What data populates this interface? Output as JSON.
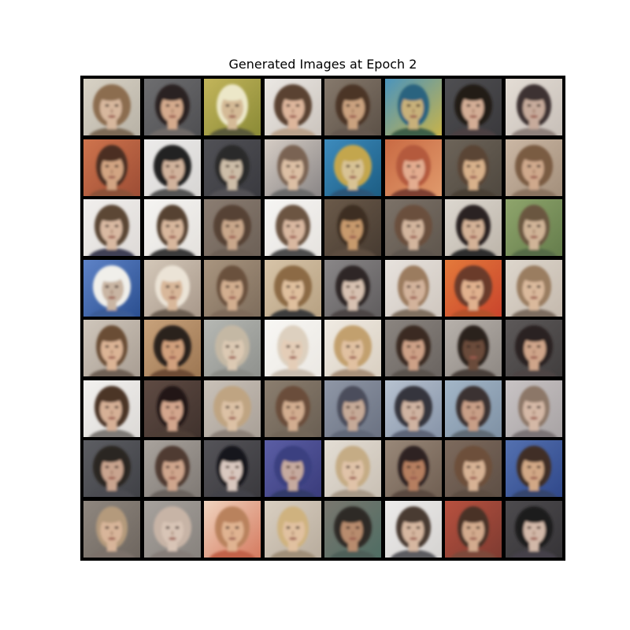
{
  "figure": {
    "title": "Generated Images at Epoch 2"
  },
  "grid": {
    "rows": 8,
    "cols": 8,
    "tile_count": 64,
    "background_color": "#000000",
    "frame_color": "#000000"
  },
  "faces": [
    {
      "bg": "#d8d2c5",
      "bg2": "#b8b2a6",
      "skin": "#d7b79d",
      "hair": "#8c6d4f",
      "shirt": "#7b6a57"
    },
    {
      "bg": "#6e6e70",
      "bg2": "#4f4f52",
      "skin": "#d4aa8d",
      "hair": "#2a2320",
      "shirt": "#6f6a67"
    },
    {
      "bg": "#c3b55b",
      "bg2": "#8a8a36",
      "skin": "#d4ba96",
      "hair": "#ece7c8",
      "shirt": "#5a5a3a"
    },
    {
      "bg": "#ebe8e4",
      "bg2": "#cbc4bd",
      "skin": "#ddb69b",
      "hair": "#5a4233",
      "shirt": "#b9a28c"
    },
    {
      "bg": "#86796c",
      "bg2": "#5c5147",
      "skin": "#caa27f",
      "hair": "#4b3527",
      "shirt": "#65594f"
    },
    {
      "bg": "#4a94bd",
      "bg2": "#c7b34b",
      "skin": "#c8b07a",
      "hair": "#2a637f",
      "shirt": "#3c5e4a"
    },
    {
      "bg": "#4f4f52",
      "bg2": "#3a393c",
      "skin": "#d3ad95",
      "hair": "#201a18",
      "shirt": "#4b4142"
    },
    {
      "bg": "#e4ddd5",
      "bg2": "#c7bfb8",
      "skin": "#c7ab9b",
      "hair": "#3c3232",
      "shirt": "#8e817c"
    },
    {
      "bg": "#cf744d",
      "bg2": "#9d4d35",
      "skin": "#d2a482",
      "hair": "#4b2f22",
      "shirt": "#8c5138"
    },
    {
      "bg": "#ecebea",
      "bg2": "#d7d5d3",
      "skin": "#d1b39c",
      "hair": "#202020",
      "shirt": "#545454"
    },
    {
      "bg": "#515156",
      "bg2": "#3a3a3f",
      "skin": "#cdbda8",
      "hair": "#2b2a2a",
      "shirt": "#535154"
    },
    {
      "bg": "#d5ccc4",
      "bg2": "#8a8686",
      "skin": "#dcbfa4",
      "hair": "#7a6452",
      "shirt": "#6b6b6b"
    },
    {
      "bg": "#3d8bbd",
      "bg2": "#1c5d83",
      "skin": "#d8c294",
      "hair": "#c3a64e",
      "shirt": "#2c5577"
    },
    {
      "bg": "#c96a43",
      "bg2": "#e09a6c",
      "skin": "#e3ac8f",
      "hair": "#b45a3e",
      "shirt": "#7d3f31"
    },
    {
      "bg": "#6d6459",
      "bg2": "#4f483f",
      "skin": "#d8b18b",
      "hair": "#5a4535",
      "shirt": "#4a4035"
    },
    {
      "bg": "#cbb7a4",
      "bg2": "#a38f7b",
      "skin": "#cfa98c",
      "hair": "#7a5c43",
      "shirt": "#8a7361"
    },
    {
      "bg": "#f1efed",
      "bg2": "#dedad7",
      "skin": "#d9b9a2",
      "hair": "#5b4636",
      "shirt": "#3f3f55"
    },
    {
      "bg": "#f5f4f2",
      "bg2": "#e4e1dd",
      "skin": "#d8b79d",
      "hair": "#574233",
      "shirt": "#3b3b3b"
    },
    {
      "bg": "#8b7d72",
      "bg2": "#6c6056",
      "skin": "#c9a78b",
      "hair": "#564235",
      "shirt": "#6c5f55"
    },
    {
      "bg": "#f6f5f3",
      "bg2": "#e6e3df",
      "skin": "#d9b8a0",
      "hair": "#6c5443",
      "shirt": "#4e4e4e"
    },
    {
      "bg": "#6b5a4a",
      "bg2": "#473b31",
      "skin": "#c79a6d",
      "hair": "#3c2e23",
      "shirt": "#5d4e40"
    },
    {
      "bg": "#7c7268",
      "bg2": "#5f564d",
      "skin": "#d3b59d",
      "hair": "#6a4f3d",
      "shirt": "#5d554d"
    },
    {
      "bg": "#dcd7cf",
      "bg2": "#bdb5aa",
      "skin": "#d4b297",
      "hair": "#2a2422",
      "shirt": "#2d2d2d"
    },
    {
      "bg": "#8fa56c",
      "bg2": "#657d4c",
      "skin": "#d0b497",
      "hair": "#6b5740",
      "shirt": "#556a47"
    },
    {
      "bg": "#5e83c7",
      "bg2": "#2b4f90",
      "skin": "#c9b5a3",
      "hair": "#f0efea",
      "shirt": "#3b5b96"
    },
    {
      "bg": "#d4c8b9",
      "bg2": "#a8988a",
      "skin": "#d8b79a",
      "hair": "#ebe3d6",
      "shirt": "#6c5f52"
    },
    {
      "bg": "#a9957f",
      "bg2": "#7e6d5c",
      "skin": "#d2ae8f",
      "hair": "#6b513e",
      "shirt": "#7e6b5a"
    },
    {
      "bg": "#d7c4a8",
      "bg2": "#b7a182",
      "skin": "#dfbf9d",
      "hair": "#8c6a44",
      "shirt": "#3d3d3d"
    },
    {
      "bg": "#8a8788",
      "bg2": "#605d5e",
      "skin": "#d7c1b1",
      "hair": "#2f2725",
      "shirt": "#4b4545"
    },
    {
      "bg": "#e7e2dd",
      "bg2": "#cfc7bf",
      "skin": "#d3b39b",
      "hair": "#9b7b5f",
      "shirt": "#7f6f61"
    },
    {
      "bg": "#e47a3b",
      "bg2": "#c9442c",
      "skin": "#e0b18e",
      "hair": "#6b3a2c",
      "shirt": "#b4512c"
    },
    {
      "bg": "#ddd6cc",
      "bg2": "#c4b9ad",
      "skin": "#dab99c",
      "hair": "#9a7d60",
      "shirt": "#7c6d60"
    },
    {
      "bg": "#cfc6bb",
      "bg2": "#a99e93",
      "skin": "#dbb495",
      "hair": "#6a4d36",
      "shirt": "#6e6155"
    },
    {
      "bg": "#c8a27b",
      "bg2": "#9d7753",
      "skin": "#d1a07d",
      "hair": "#2c221d",
      "shirt": "#6d4b36"
    },
    {
      "bg": "#b6b8b3",
      "bg2": "#8f918d",
      "skin": "#dcc9b3",
      "hair": "#c4b8a4",
      "shirt": "#8a8b86"
    },
    {
      "bg": "#f8f7f4",
      "bg2": "#ebe8e3",
      "skin": "#e4cdb7",
      "hair": "#ddd0bf",
      "shirt": "#c8bdb0"
    },
    {
      "bg": "#f0ebe3",
      "bg2": "#d9cfc1",
      "skin": "#e1c1a1",
      "hair": "#c2a06e",
      "shirt": "#a8917a"
    },
    {
      "bg": "#8b8580",
      "bg2": "#6a6460",
      "skin": "#cda187",
      "hair": "#3a2a22",
      "shirt": "#5a524e"
    },
    {
      "bg": "#b7b1ab",
      "bg2": "#8e8883",
      "skin": "#6b4b3b",
      "hair": "#2b201c",
      "shirt": "#4a3f3b"
    },
    {
      "bg": "#5d5959",
      "bg2": "#413e3e",
      "skin": "#cfa58a",
      "hair": "#2a2220",
      "shirt": "#4d4545"
    },
    {
      "bg": "#f2f1ef",
      "bg2": "#dcd9d6",
      "skin": "#d6b096",
      "hair": "#4b3427",
      "shirt": "#7e7a76"
    },
    {
      "bg": "#5f4b43",
      "bg2": "#40322d",
      "skin": "#d3a68d",
      "hair": "#211916",
      "shirt": "#4e3c36"
    },
    {
      "bg": "#c9c1b8",
      "bg2": "#a9a097",
      "skin": "#dcc1a5",
      "hair": "#bfa482",
      "shirt": "#8c8178"
    },
    {
      "bg": "#8b7e6f",
      "bg2": "#6a5f53",
      "skin": "#d2ad90",
      "hair": "#6a4e3b",
      "shirt": "#726658"
    },
    {
      "bg": "#8f97a6",
      "bg2": "#6b7282",
      "skin": "#c6aa98",
      "hair": "#4b4e5b",
      "shirt": "#606778"
    },
    {
      "bg": "#b7c2d0",
      "bg2": "#8794a8",
      "skin": "#cfb3a1",
      "hair": "#36343c",
      "shirt": "#5d6577"
    },
    {
      "bg": "#a3b6c8",
      "bg2": "#7f91a4",
      "skin": "#c89f87",
      "hair": "#3b3332",
      "shirt": "#5f6a74"
    },
    {
      "bg": "#c8c3c4",
      "bg2": "#a8a3a4",
      "skin": "#d4b8a6",
      "hair": "#8c7767",
      "shirt": "#7a7375"
    },
    {
      "bg": "#5d5e63",
      "bg2": "#404146",
      "skin": "#c9a48f",
      "hair": "#2c2624",
      "shirt": "#4b4b51"
    },
    {
      "bg": "#a9a39d",
      "bg2": "#7f7974",
      "skin": "#cfa68d",
      "hair": "#4f3b31",
      "shirt": "#69625d"
    },
    {
      "bg": "#555459",
      "bg2": "#3a393d",
      "skin": "#d9c8bf",
      "hair": "#19161a",
      "shirt": "#43424a"
    },
    {
      "bg": "#5b5ea5",
      "bg2": "#3a3c7b",
      "skin": "#c6aa9f",
      "hair": "#3a4180",
      "shirt": "#333a69"
    },
    {
      "bg": "#e3ddd4",
      "bg2": "#c9c0b4",
      "skin": "#e0c3a8",
      "hair": "#c5ac85",
      "shirt": "#a79988"
    },
    {
      "bg": "#998879",
      "bg2": "#705f52",
      "skin": "#b67f61",
      "hair": "#2e2420",
      "shirt": "#5a4a3f"
    },
    {
      "bg": "#7d6a5d",
      "bg2": "#5e4f45",
      "skin": "#d7b294",
      "hair": "#6d4f3b",
      "shirt": "#5d4d42"
    },
    {
      "bg": "#5471b0",
      "bg2": "#30488a",
      "skin": "#d2a886",
      "hair": "#3f2e27",
      "shirt": "#34446d"
    },
    {
      "bg": "#8f877f",
      "bg2": "#6e665f",
      "skin": "#d8b59a",
      "hair": "#b49a7c",
      "shirt": "#7b716a"
    },
    {
      "bg": "#a7a29d",
      "bg2": "#87827d",
      "skin": "#d8c4b6",
      "hair": "#c7b4a6",
      "shirt": "#857d78"
    },
    {
      "bg": "#f0d4bf",
      "bg2": "#d57a5f",
      "skin": "#e0b391",
      "hair": "#b9825d",
      "shirt": "#c1624a"
    },
    {
      "bg": "#d9cfc1",
      "bg2": "#b8ac9d",
      "skin": "#e1c1a0",
      "hair": "#cfb27f",
      "shirt": "#9f8e78"
    },
    {
      "bg": "#7a776f",
      "bg2": "#4f6d63",
      "skin": "#b88c6e",
      "hair": "#2f2a27",
      "shirt": "#4e5e58"
    },
    {
      "bg": "#ecebea",
      "bg2": "#d5d3d1",
      "skin": "#d6b7a0",
      "hair": "#4a3b32",
      "shirt": "#5b5b60"
    },
    {
      "bg": "#b8513f",
      "bg2": "#7e3b31",
      "skin": "#d3ab8e",
      "hair": "#4a3128",
      "shirt": "#7d4a3b"
    },
    {
      "bg": "#4d4b4e",
      "bg2": "#363437",
      "skin": "#d2b8a8",
      "hair": "#1f1b1d",
      "shirt": "#45414a"
    }
  ]
}
